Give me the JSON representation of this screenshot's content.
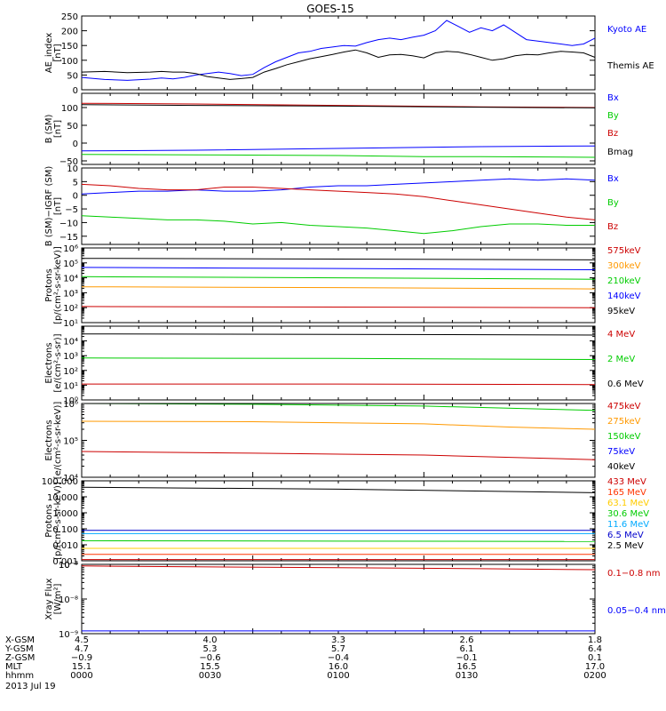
{
  "title": "GOES-15",
  "chart_data": [
    {
      "type": "line",
      "ylabel": [
        "AE_index",
        "[nT]"
      ],
      "ylim": [
        0,
        250
      ],
      "yticks": [
        0,
        50,
        100,
        150,
        200,
        250
      ],
      "yticklabels": [
        "0",
        "50",
        "100",
        "150",
        "200",
        "250"
      ],
      "legend": "right",
      "series": [
        {
          "name": "Kyoto AE",
          "color": "#0000ff",
          "x": [
            0,
            4,
            8,
            12,
            14,
            16,
            18,
            20,
            22,
            24,
            26,
            28,
            30,
            32,
            34,
            36,
            38,
            40,
            42,
            44,
            46,
            48,
            50,
            52,
            54,
            56,
            58,
            60,
            62,
            64,
            66,
            68,
            70,
            72,
            74,
            76,
            78,
            80,
            82,
            84,
            86,
            88,
            90
          ],
          "y": [
            42,
            35,
            32,
            36,
            40,
            37,
            42,
            50,
            55,
            60,
            55,
            48,
            52,
            75,
            95,
            110,
            125,
            130,
            140,
            145,
            150,
            148,
            160,
            170,
            175,
            170,
            178,
            185,
            200,
            235,
            215,
            195,
            210,
            200,
            220,
            195,
            170,
            165,
            160,
            155,
            150,
            155,
            175
          ]
        },
        {
          "name": "Themis AE",
          "color": "#000000",
          "x": [
            0,
            4,
            8,
            12,
            14,
            16,
            18,
            20,
            22,
            24,
            26,
            28,
            30,
            32,
            34,
            36,
            38,
            40,
            42,
            44,
            46,
            48,
            50,
            52,
            54,
            56,
            58,
            60,
            62,
            64,
            66,
            68,
            70,
            72,
            74,
            76,
            78,
            80,
            82,
            84,
            86,
            88,
            90
          ],
          "y": [
            60,
            62,
            58,
            60,
            62,
            60,
            60,
            55,
            45,
            40,
            35,
            38,
            42,
            60,
            72,
            85,
            95,
            105,
            112,
            120,
            128,
            135,
            125,
            110,
            118,
            120,
            115,
            108,
            125,
            130,
            128,
            120,
            110,
            100,
            105,
            115,
            120,
            118,
            125,
            130,
            128,
            125,
            110
          ]
        }
      ]
    },
    {
      "type": "line",
      "ylabel": [
        "B (SM)",
        "[nT]"
      ],
      "ylim": [
        -60,
        140
      ],
      "yticks": [
        -50,
        0,
        50,
        100
      ],
      "yticklabels": [
        "−50",
        "0",
        "50",
        "100"
      ],
      "legend": "right",
      "series": [
        {
          "name": "Bx",
          "color": "#0000ff",
          "x": [
            0,
            20,
            45,
            70,
            90
          ],
          "y": [
            -22,
            -20,
            -15,
            -10,
            -8
          ]
        },
        {
          "name": "By",
          "color": "#00cc00",
          "x": [
            0,
            20,
            45,
            60,
            70,
            90
          ],
          "y": [
            -32,
            -33,
            -35,
            -38,
            -38,
            -40
          ]
        },
        {
          "name": "Bz",
          "color": "#cc0000",
          "x": [
            0,
            20,
            45,
            70,
            90
          ],
          "y": [
            112,
            110,
            106,
            102,
            100
          ]
        },
        {
          "name": "Bmag",
          "color": "#000000",
          "x": [
            0,
            20,
            45,
            70,
            90
          ],
          "y": [
            108,
            106,
            104,
            101,
            99
          ]
        }
      ]
    },
    {
      "type": "line",
      "ylabel": [
        "B (SM)−IGRF (SM)",
        "[nT]"
      ],
      "ylim": [
        -18,
        10
      ],
      "yticks": [
        -15,
        -10,
        -5,
        0,
        5,
        10
      ],
      "yticklabels": [
        "−15",
        "−10",
        "−5",
        "0",
        "5",
        "10"
      ],
      "legend": "right",
      "series": [
        {
          "name": "Bx",
          "color": "#0000ff",
          "x": [
            0,
            5,
            10,
            15,
            20,
            25,
            30,
            35,
            40,
            45,
            50,
            55,
            60,
            65,
            70,
            75,
            80,
            85,
            90
          ],
          "y": [
            0.5,
            1,
            1.5,
            1.5,
            2,
            1.5,
            1.5,
            2,
            3,
            3.5,
            3.5,
            4,
            4.5,
            5,
            5.5,
            6,
            5.5,
            6,
            5.5
          ]
        },
        {
          "name": "By",
          "color": "#00cc00",
          "x": [
            0,
            5,
            10,
            15,
            20,
            25,
            30,
            35,
            40,
            45,
            50,
            55,
            60,
            65,
            70,
            75,
            80,
            85,
            90
          ],
          "y": [
            -7.5,
            -8,
            -8.5,
            -9,
            -9,
            -9.5,
            -10.5,
            -10,
            -11,
            -11.5,
            -12,
            -13,
            -14,
            -13,
            -11.5,
            -10.5,
            -10.5,
            -11,
            -11
          ]
        },
        {
          "name": "Bz",
          "color": "#cc0000",
          "x": [
            0,
            5,
            10,
            15,
            20,
            25,
            30,
            35,
            40,
            45,
            50,
            55,
            60,
            65,
            70,
            75,
            80,
            85,
            90
          ],
          "y": [
            4,
            3.5,
            2.5,
            2,
            2,
            3,
            3,
            2.5,
            2,
            1.5,
            1,
            0.5,
            -0.5,
            -2,
            -3.5,
            -5,
            -6.5,
            -8,
            -9
          ]
        }
      ]
    },
    {
      "type": "line",
      "ylabel": [
        "Protons",
        "[p/(cm²-s-sr-keV)]"
      ],
      "yscale": "log",
      "ylim": [
        10,
        1000000
      ],
      "yticks": [
        10,
        100,
        1000,
        10000,
        100000,
        1000000
      ],
      "yticklabels": [
        "10¹",
        "10²",
        "10³",
        "10⁴",
        "10⁵",
        "10⁶"
      ],
      "legend": "right",
      "series": [
        {
          "name": "575keV",
          "color": "#cc0000",
          "x": [
            0,
            45,
            90
          ],
          "y": [
            120,
            110,
            100
          ]
        },
        {
          "name": "300keV",
          "color": "#ff9900",
          "x": [
            0,
            45,
            90
          ],
          "y": [
            2500,
            2200,
            1800
          ]
        },
        {
          "name": "210keV",
          "color": "#00cc00",
          "x": [
            0,
            45,
            90
          ],
          "y": [
            12000,
            10000,
            8000
          ]
        },
        {
          "name": "140keV",
          "color": "#0000ff",
          "x": [
            0,
            45,
            90
          ],
          "y": [
            50000,
            42000,
            35000
          ]
        },
        {
          "name": "95keV",
          "color": "#000000",
          "x": [
            0,
            45,
            90
          ],
          "y": [
            200000,
            180000,
            160000
          ]
        }
      ]
    },
    {
      "type": "line",
      "ylabel": [
        "Electrons",
        "[e/(cm²-s-sr)]"
      ],
      "yscale": "log",
      "ylim": [
        1,
        100000
      ],
      "yticks": [
        1,
        10,
        100,
        1000,
        10000
      ],
      "yticklabels": [
        "10⁰",
        "10¹",
        "10²",
        "10³",
        "10⁴"
      ],
      "legend": "right",
      "series": [
        {
          "name": "4 MeV",
          "color": "#cc0000",
          "x": [
            0,
            45,
            90
          ],
          "y": [
            12,
            12,
            11
          ]
        },
        {
          "name": "2 MeV",
          "color": "#00cc00",
          "x": [
            0,
            45,
            90
          ],
          "y": [
            700,
            650,
            550
          ]
        },
        {
          "name": "0.6 MeV",
          "color": "#000000",
          "x": [
            0,
            45,
            90
          ],
          "y": [
            30000,
            28000,
            25000
          ]
        }
      ]
    },
    {
      "type": "line",
      "ylabel": [
        "Electrons",
        "[e/(cm²-s-sr-keV)]"
      ],
      "yscale": "log",
      "ylim": [
        10000,
        1000000
      ],
      "yticks": [
        10000,
        100000,
        1000000
      ],
      "yticklabels": [
        "10⁴",
        "10⁵",
        "10⁶"
      ],
      "legend": "right",
      "series": [
        {
          "name": "475keV",
          "color": "#cc0000",
          "x": [
            0,
            30,
            60,
            90
          ],
          "y": [
            50000,
            45000,
            40000,
            30000
          ]
        },
        {
          "name": "275keV",
          "color": "#ff9900",
          "x": [
            0,
            30,
            60,
            75,
            90
          ],
          "y": [
            330000,
            320000,
            280000,
            230000,
            200000
          ]
        },
        {
          "name": "150keV",
          "color": "#00cc00",
          "x": [
            0,
            30,
            60,
            90
          ],
          "y": [
            1000000,
            950000,
            850000,
            650000
          ]
        },
        {
          "name": "75keV",
          "color": "#0000ff",
          "x": [
            0,
            90
          ],
          "y": [
            1000000,
            1000000
          ]
        },
        {
          "name": "40keV",
          "color": "#000000",
          "x": [
            0,
            90
          ],
          "y": [
            1000000,
            1000000
          ]
        }
      ]
    },
    {
      "type": "line",
      "ylabel": [
        "Protons",
        "[p/(cm²-s-sr-keV)]"
      ],
      "yscale": "log",
      "ylim": [
        0.001,
        100
      ],
      "yticks": [
        0.001,
        0.01,
        0.1,
        1,
        10
      ],
      "yticklabels": [
        "0.001",
        "0.010",
        "0.100",
        "1.000",
        "10.000"
      ],
      "extra_tick_labels": [
        "100.000"
      ],
      "legend": "right",
      "series": [
        {
          "name": "433 MeV",
          "color": "#cc0000",
          "x": [
            0,
            90
          ],
          "y": [
            0.0012,
            0.0012
          ]
        },
        {
          "name": "165 MeV",
          "color": "#ff3300",
          "x": [
            0,
            90
          ],
          "y": [
            0.0025,
            0.0025
          ]
        },
        {
          "name": "63.1 MeV",
          "color": "#ffcc00",
          "x": [
            0,
            90
          ],
          "y": [
            0.006,
            0.006
          ]
        },
        {
          "name": "30.6 MeV",
          "color": "#00cc00",
          "x": [
            0,
            90
          ],
          "y": [
            0.018,
            0.016
          ]
        },
        {
          "name": "11.6 MeV",
          "color": "#00aaff",
          "x": [
            0,
            90
          ],
          "y": [
            0.05,
            0.05
          ]
        },
        {
          "name": "6.5 MeV",
          "color": "#0000cc",
          "x": [
            0,
            90
          ],
          "y": [
            0.08,
            0.08
          ]
        },
        {
          "name": "2.5 MeV",
          "color": "#000000",
          "x": [
            0,
            45,
            90
          ],
          "y": [
            40,
            30,
            18
          ]
        }
      ]
    },
    {
      "type": "line",
      "ylabel": [
        "Xray Flux",
        "[W/m²]"
      ],
      "yscale": "log",
      "ylim": [
        1e-09,
        1e-07
      ],
      "yticks": [
        1e-09,
        1e-08,
        1e-07
      ],
      "yticklabels": [
        "10⁻⁹",
        "10⁻⁸",
        "10⁻⁷"
      ],
      "extra_tick_labels": [
        "10⁻⁶"
      ],
      "legend": "right",
      "series": [
        {
          "name": "0.1−0.8 nm",
          "color": "#cc0000",
          "x": [
            0,
            20,
            45,
            70,
            90
          ],
          "y": [
            9e-08,
            8.5e-08,
            8e-08,
            7.5e-08,
            7e-08
          ]
        },
        {
          "name": "0.05−0.4 nm",
          "color": "#0000ff",
          "x": [
            0,
            90
          ],
          "y": [
            1.2e-09,
            1.2e-09
          ]
        }
      ]
    }
  ],
  "x_axis": {
    "labels": [
      "X-GSM",
      "Y-GSM",
      "Z-GSM",
      "MLT",
      "hhmm"
    ],
    "columns": [
      [
        "4.5",
        "4.7",
        "−0.9",
        "15.1",
        "0000"
      ],
      [
        "4.0",
        "5.3",
        "−0.6",
        "15.5",
        "0030"
      ],
      [
        "3.3",
        "5.7",
        "−0.4",
        "16.0",
        "0100"
      ],
      [
        "2.6",
        "6.1",
        "−0.1",
        "16.5",
        "0130"
      ],
      [
        "1.8",
        "6.4",
        "0.1",
        "17.0",
        "0200"
      ]
    ],
    "date": "2013 Jul 19"
  }
}
